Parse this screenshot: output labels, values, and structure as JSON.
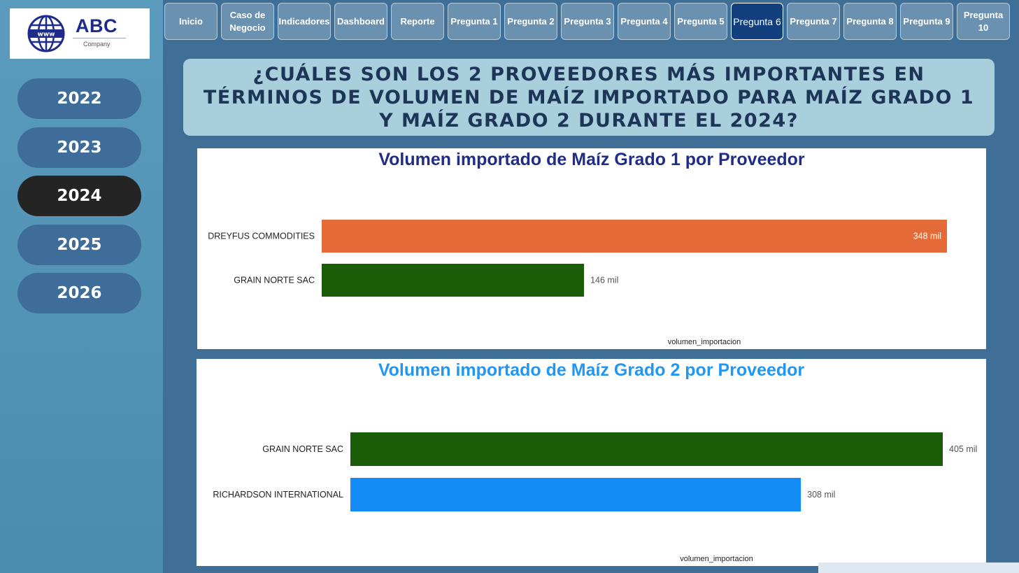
{
  "logo": {
    "title": "ABC",
    "subtitle": "Company",
    "icon": "globe-www-icon"
  },
  "sidebar": {
    "years": [
      {
        "label": "2022",
        "active": false
      },
      {
        "label": "2023",
        "active": false
      },
      {
        "label": "2024",
        "active": true
      },
      {
        "label": "2025",
        "active": false
      },
      {
        "label": "2026",
        "active": false
      }
    ]
  },
  "tabs": [
    {
      "label": "Inicio",
      "active": false
    },
    {
      "label": "Caso de\nNegocio",
      "active": false
    },
    {
      "label": "Indicadores",
      "active": false
    },
    {
      "label": "Dashboard",
      "active": false
    },
    {
      "label": "Reporte",
      "active": false
    },
    {
      "label": "Pregunta 1",
      "active": false
    },
    {
      "label": "Pregunta 2",
      "active": false
    },
    {
      "label": "Pregunta 3",
      "active": false
    },
    {
      "label": "Pregunta 4",
      "active": false
    },
    {
      "label": "Pregunta 5",
      "active": false
    },
    {
      "label": "Pregunta 6",
      "active": true
    },
    {
      "label": "Pregunta 7",
      "active": false
    },
    {
      "label": "Pregunta 8",
      "active": false
    },
    {
      "label": "Pregunta 9",
      "active": false
    },
    {
      "label": "Pregunta 10",
      "active": false
    }
  ],
  "question": "¿CUÁLES SON LOS 2 PROVEEDORES MÁS IMPORTANTES EN TÉRMINOS DE VOLUMEN DE MAÍZ IMPORTADO PARA MAÍZ GRADO 1 Y MAÍZ GRADO 2 DURANTE EL 2024?",
  "colors": {
    "dreyfus": "#e46b37",
    "grain_norte": "#1a5c08",
    "richardson": "#138cf5",
    "active_year": "#242424",
    "active_tab": "#123f7d"
  },
  "chart_data": [
    {
      "type": "bar",
      "orientation": "horizontal",
      "title": "Volumen importado de Maíz Grado 1 por Proveedor",
      "xlabel": "volumen_importacion",
      "ylabel": "",
      "categories": [
        "DREYFUS COMMODITIES",
        "GRAIN NORTE SAC"
      ],
      "values": [
        348000,
        146000
      ],
      "value_labels": [
        "348 mil",
        "146 mil"
      ],
      "colors": [
        "#e46b37",
        "#1a5c08"
      ],
      "xlim": [
        0,
        348000
      ],
      "grid": false
    },
    {
      "type": "bar",
      "orientation": "horizontal",
      "title": "Volumen importado de Maíz Grado 2 por Proveedor",
      "xlabel": "volumen_importacion",
      "ylabel": "",
      "categories": [
        "GRAIN NORTE SAC",
        "RICHARDSON INTERNATIONAL"
      ],
      "values": [
        405000,
        308000
      ],
      "value_labels": [
        "405 mil",
        "308 mil"
      ],
      "colors": [
        "#1a5c08",
        "#138cf5"
      ],
      "xlim": [
        0,
        405000
      ],
      "grid": false
    }
  ]
}
